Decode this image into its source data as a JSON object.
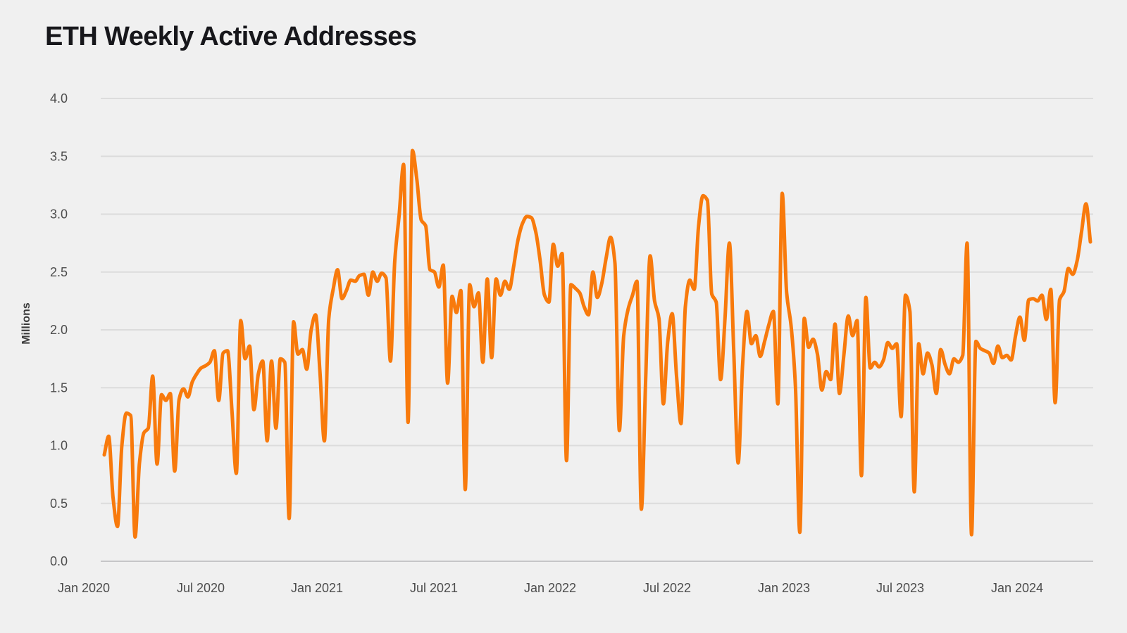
{
  "title": "ETH Weekly Active Addresses",
  "y_axis": {
    "title": "Millions",
    "tick_labels": [
      "4.0",
      "3.5",
      "3.0",
      "2.5",
      "2.0",
      "1.5",
      "1.0",
      "0.5",
      "0.0"
    ]
  },
  "x_axis": {
    "tick_labels": [
      "Jan 2020",
      "Jul 2020",
      "Jan 2021",
      "Jul 2021",
      "Jan 2022",
      "Jul 2022",
      "Jan 2023",
      "Jul 2023",
      "Jan 2024"
    ]
  },
  "chart_data": {
    "type": "line",
    "title": "ETH Weekly Active Addresses",
    "series_name": "ETH Weekly Active Addresses",
    "unit": "millions of addresses",
    "frequency": "weekly",
    "start_date": "2020-02-02",
    "end_date": "2024-05-19",
    "ylabel": "Millions",
    "xlabel": "",
    "ylim": [
      0.0,
      4.0
    ],
    "ytick_step": 0.5,
    "grid": "horizontal",
    "legend_position": "none",
    "line_color": "#f87a0c",
    "values": [
      0.92,
      1.08,
      0.55,
      0.3,
      1.0,
      1.28,
      1.26,
      0.21,
      0.85,
      1.11,
      1.15,
      1.6,
      0.84,
      1.44,
      1.39,
      1.45,
      0.78,
      1.4,
      1.49,
      1.42,
      1.55,
      1.62,
      1.67,
      1.69,
      1.72,
      1.82,
      1.39,
      1.8,
      1.82,
      1.3,
      0.76,
      2.08,
      1.75,
      1.86,
      1.31,
      1.62,
      1.73,
      1.04,
      1.73,
      1.15,
      1.75,
      1.72,
      0.37,
      2.07,
      1.79,
      1.83,
      1.66,
      2.0,
      2.13,
      1.63,
      1.04,
      2.1,
      2.35,
      2.52,
      2.27,
      2.34,
      2.43,
      2.42,
      2.47,
      2.48,
      2.3,
      2.5,
      2.42,
      2.49,
      2.45,
      1.73,
      2.6,
      3.0,
      3.43,
      1.2,
      3.55,
      3.3,
      2.95,
      2.9,
      2.52,
      2.5,
      2.37,
      2.56,
      1.54,
      2.29,
      2.15,
      2.34,
      0.62,
      2.39,
      2.2,
      2.32,
      1.72,
      2.44,
      1.76,
      2.44,
      2.3,
      2.42,
      2.35,
      2.55,
      2.78,
      2.92,
      2.98,
      2.97,
      2.85,
      2.6,
      2.3,
      2.24,
      2.74,
      2.55,
      2.66,
      0.87,
      2.39,
      2.36,
      2.32,
      2.2,
      2.13,
      2.5,
      2.28,
      2.4,
      2.62,
      2.8,
      2.58,
      1.13,
      1.95,
      2.18,
      2.3,
      2.42,
      0.45,
      1.6,
      2.64,
      2.25,
      2.1,
      1.36,
      1.9,
      2.14,
      1.6,
      1.19,
      2.2,
      2.43,
      2.35,
      2.9,
      3.16,
      3.12,
      2.31,
      2.24,
      1.57,
      2.1,
      2.75,
      1.8,
      0.85,
      1.7,
      2.16,
      1.88,
      1.95,
      1.77,
      1.9,
      2.05,
      2.16,
      1.36,
      3.18,
      2.32,
      2.04,
      1.51,
      0.25,
      2.1,
      1.85,
      1.92,
      1.79,
      1.48,
      1.64,
      1.57,
      2.05,
      1.45,
      1.78,
      2.12,
      1.95,
      2.08,
      0.74,
      2.28,
      1.67,
      1.72,
      1.68,
      1.74,
      1.89,
      1.84,
      1.88,
      1.25,
      2.3,
      2.16,
      0.6,
      1.88,
      1.62,
      1.8,
      1.7,
      1.45,
      1.83,
      1.7,
      1.62,
      1.75,
      1.72,
      1.78,
      2.75,
      0.23,
      1.9,
      1.84,
      1.82,
      1.8,
      1.71,
      1.86,
      1.76,
      1.78,
      1.74,
      1.95,
      2.11,
      1.91,
      2.26,
      2.27,
      2.25,
      2.3,
      2.09,
      2.35,
      1.37,
      2.26,
      2.33,
      2.53,
      2.48,
      2.6,
      2.85,
      3.09,
      2.76
    ]
  },
  "colors": {
    "background": "#f0f0f0",
    "line": "#f87a0c",
    "gridline": "#dcdcdc",
    "baseline": "#c6c6c8",
    "title_text": "#17171b",
    "axis_text": "#4d4d4d",
    "y_axis_title_text": "#3c3c3c"
  }
}
